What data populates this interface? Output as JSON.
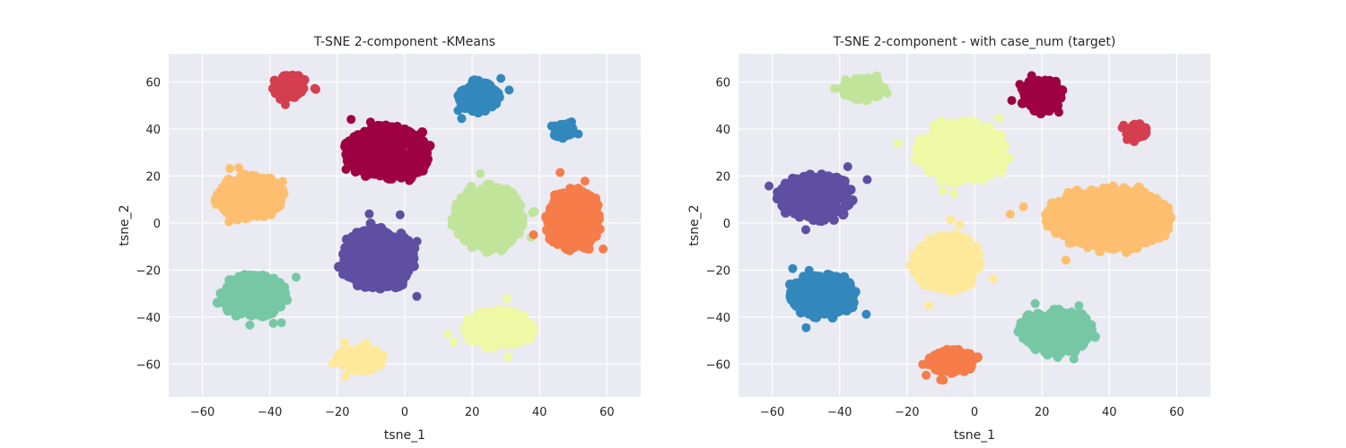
{
  "chart_data": [
    {
      "type": "scatter",
      "title": "T-SNE 2-component -KMeans",
      "xlabel": "tsne_1",
      "ylabel": "tsne_2",
      "xlim": [
        -70,
        70
      ],
      "ylim": [
        -74,
        72
      ],
      "xticks": [
        -60,
        -40,
        -20,
        0,
        20,
        40,
        60
      ],
      "yticks": [
        -60,
        -40,
        -20,
        0,
        20,
        40,
        60
      ],
      "grid": true,
      "clusters": [
        {
          "color": "#d53e4f",
          "center": [
            -34,
            58
          ],
          "spread": [
            5,
            5
          ]
        },
        {
          "color": "#3288bd",
          "center": [
            22,
            54
          ],
          "spread": [
            6,
            7
          ]
        },
        {
          "color": "#3288bd",
          "center": [
            47,
            39
          ],
          "spread": [
            3,
            3
          ]
        },
        {
          "color": "#9e0142",
          "center": [
            -5,
            30
          ],
          "spread": [
            13,
            11
          ]
        },
        {
          "color": "#fdbf6f",
          "center": [
            -46,
            11
          ],
          "spread": [
            10,
            9
          ]
        },
        {
          "color": "#c1e49b",
          "center": [
            25,
            2
          ],
          "spread": [
            10,
            14
          ]
        },
        {
          "color": "#f67c4a",
          "center": [
            50,
            1
          ],
          "spread": [
            8,
            13
          ]
        },
        {
          "color": "#5e4fa2",
          "center": [
            -8,
            -15
          ],
          "spread": [
            11,
            13
          ]
        },
        {
          "color": "#76c8a5",
          "center": [
            -45,
            -31
          ],
          "spread": [
            10,
            9
          ]
        },
        {
          "color": "#eff8a4",
          "center": [
            28,
            -45
          ],
          "spread": [
            10,
            8
          ]
        },
        {
          "color": "#fee89a",
          "center": [
            -13,
            -58
          ],
          "spread": [
            7,
            5
          ]
        }
      ]
    },
    {
      "type": "scatter",
      "title": "T-SNE 2-component - with case_num (target)",
      "xlabel": "tsne_1",
      "ylabel": "tsne_2",
      "xlim": [
        -70,
        70
      ],
      "ylim": [
        -74,
        72
      ],
      "xticks": [
        -60,
        -40,
        -20,
        0,
        20,
        40,
        60
      ],
      "yticks": [
        -60,
        -40,
        -20,
        0,
        20,
        40,
        60
      ],
      "grid": true,
      "clusters": [
        {
          "color": "#c1e49b",
          "center": [
            -33,
            57
          ],
          "spread": [
            6,
            5
          ]
        },
        {
          "color": "#9e0142",
          "center": [
            20,
            54
          ],
          "spread": [
            6,
            7
          ]
        },
        {
          "color": "#d53e4f",
          "center": [
            48,
            39
          ],
          "spread": [
            3,
            3
          ]
        },
        {
          "color": "#eff8a4",
          "center": [
            -4,
            30
          ],
          "spread": [
            13,
            13
          ]
        },
        {
          "color": "#5e4fa2",
          "center": [
            -47,
            11
          ],
          "spread": [
            11,
            10
          ]
        },
        {
          "color": "#fdbf6f",
          "center": [
            40,
            2
          ],
          "spread": [
            18,
            13
          ]
        },
        {
          "color": "#fee89a",
          "center": [
            -8,
            -17
          ],
          "spread": [
            10,
            12
          ]
        },
        {
          "color": "#3288bd",
          "center": [
            -45,
            -31
          ],
          "spread": [
            10,
            9
          ]
        },
        {
          "color": "#76c8a5",
          "center": [
            24,
            -46
          ],
          "spread": [
            11,
            9
          ]
        },
        {
          "color": "#f67c4a",
          "center": [
            -7,
            -59
          ],
          "spread": [
            7,
            5
          ]
        }
      ]
    }
  ]
}
